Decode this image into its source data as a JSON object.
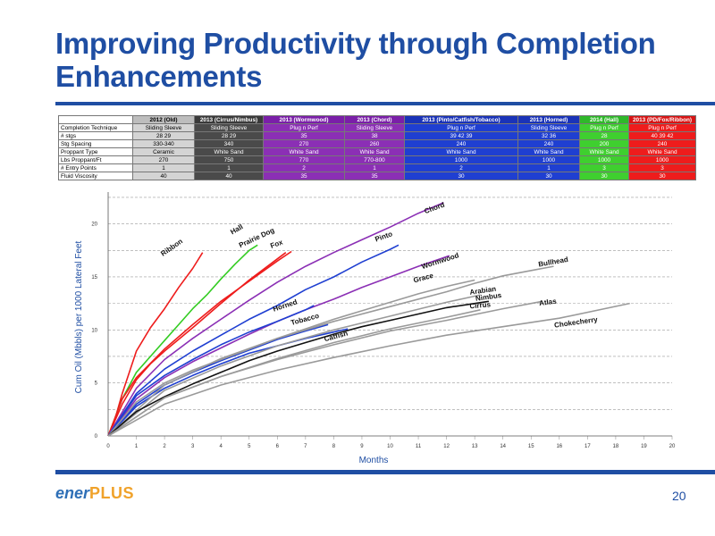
{
  "slide": {
    "title_line1": "Improving Productivity through Completion",
    "title_line2": "Enhancements",
    "page_number": "20"
  },
  "logo": {
    "part1": "ener",
    "part2": "PLUS"
  },
  "completion_table": {
    "headers": [
      "2012 (Old)",
      "2013 (Cirrus/Nimbus)",
      "2013 (Wormwood)",
      "2013 (Chord)",
      "2013 (Pinto/Catfish/Tobacco)",
      "2013 (Horned)",
      "2014 (Hall)",
      "2013 (PD/Fox/Ribbon)"
    ],
    "column_colors": [
      "#bdbdbd",
      "#4a4a4a",
      "#8b2fb5",
      "#8b2fb5",
      "#1f3fd1",
      "#1f3fd1",
      "#3fcf2f",
      "#ee1c1c"
    ],
    "header_colors": [
      "#bdbdbd",
      "#3a3a3a",
      "#7a1fa8",
      "#7a1fa8",
      "#1a33b8",
      "#1a33b8",
      "#2fb82a",
      "#d81414"
    ],
    "rows": [
      {
        "label": "Completion Technique",
        "values": [
          "Sliding Sleeve",
          "Sliding Sleeve",
          "Plug n Perf",
          "Sliding Sleeve",
          "Plug n Perf",
          "Sliding Sleeve",
          "Plug n Perf",
          "Plug n Perf"
        ]
      },
      {
        "label": "# stgs",
        "values": [
          "28 29",
          "28 29",
          "35",
          "38",
          "39   42  39",
          "32 36",
          "28",
          "40  39  42"
        ]
      },
      {
        "label": "Stg Spacing",
        "values": [
          "330-340",
          "340",
          "270",
          "260",
          "240",
          "240",
          "200",
          "240"
        ]
      },
      {
        "label": "Proppant Type",
        "values": [
          "Ceramic",
          "White Sand",
          "White Sand",
          "White Sand",
          "White Sand",
          "White Sand",
          "White Sand",
          "White Sand"
        ]
      },
      {
        "label": "Lbs Proppant/Ft",
        "values": [
          "270",
          "750",
          "770",
          "770-800",
          "1000",
          "1000",
          "1000",
          "1000"
        ]
      },
      {
        "label": "# Entry Points",
        "values": [
          "1",
          "1",
          "2",
          "1",
          "2",
          "1",
          "3",
          "3"
        ]
      },
      {
        "label": "Fluid Viscosity",
        "values": [
          "40",
          "40",
          "35",
          "35",
          "30",
          "30",
          "30",
          "30"
        ]
      }
    ]
  },
  "chart_data": {
    "type": "line",
    "title": "",
    "xlabel": "Months",
    "ylabel": "Cum Oil (Mbbls) per 1000 Lateral Feet",
    "xlim": [
      0,
      20
    ],
    "ylim": [
      0,
      23
    ],
    "x_ticks": [
      0,
      1,
      2,
      3,
      4,
      5,
      6,
      7,
      8,
      9,
      10,
      11,
      12,
      13,
      14,
      15,
      16,
      17,
      18,
      19,
      20
    ],
    "y_ticks": [
      0,
      5,
      10,
      15,
      20
    ],
    "grid": "horizontal dashed",
    "series": [
      {
        "name": "Ribbon",
        "color": "#ee1c1c",
        "label_at": [
          2.3,
          17.6
        ],
        "label_rotate": -35,
        "x": [
          0,
          0.2,
          0.5,
          1,
          1.5,
          2,
          2.5,
          3,
          3.35
        ],
        "y": [
          0,
          1.2,
          4,
          8,
          10.2,
          12,
          14,
          15.8,
          17.3
        ]
      },
      {
        "name": "Hall",
        "color": "#33cc22",
        "label_at": [
          4.6,
          19.3
        ],
        "label_rotate": -30,
        "x": [
          0,
          0.5,
          1,
          1.5,
          2,
          2.5,
          3,
          3.5,
          4,
          4.5,
          5,
          5.3
        ],
        "y": [
          0,
          3.5,
          6,
          7.5,
          9,
          10.5,
          12,
          13.3,
          14.8,
          16.2,
          17.5,
          18
        ]
      },
      {
        "name": "Prairie Dog",
        "color": "#ee1c1c",
        "label_at": [
          5.3,
          18.5
        ],
        "label_rotate": -25,
        "x": [
          0,
          0.5,
          1,
          1.5,
          2,
          3,
          4,
          5,
          6,
          6.3
        ],
        "y": [
          0,
          3,
          5.3,
          6.8,
          8,
          10.2,
          12.5,
          14.7,
          16.7,
          17.3
        ]
      },
      {
        "name": "Fox",
        "color": "#ee1c1c",
        "label_at": [
          6.0,
          17.9
        ],
        "label_rotate": -20,
        "x": [
          0,
          0.5,
          1,
          2,
          3,
          4,
          5,
          6,
          6.5
        ],
        "y": [
          0,
          3.5,
          5.5,
          8.2,
          10.5,
          12.7,
          14.6,
          16.5,
          17.4
        ]
      },
      {
        "name": "Chord",
        "color": "#8b2fb5",
        "label_at": [
          11.6,
          21.3
        ],
        "label_rotate": -20,
        "x": [
          0,
          1,
          2,
          3,
          4,
          5,
          6,
          7,
          8,
          9,
          10,
          11,
          11.9
        ],
        "y": [
          0,
          4.5,
          7.2,
          9.2,
          11,
          12.8,
          14.5,
          16,
          17.3,
          18.5,
          19.7,
          21,
          22
        ]
      },
      {
        "name": "Pinto",
        "color": "#1f3fd1",
        "label_at": [
          9.8,
          18.6
        ],
        "label_rotate": -20,
        "x": [
          0,
          1,
          2,
          3,
          4,
          5,
          6,
          7,
          8,
          9,
          10,
          10.3
        ],
        "y": [
          0,
          4,
          6.3,
          8,
          9.5,
          11,
          12.3,
          13.8,
          15,
          16.4,
          17.6,
          18
        ]
      },
      {
        "name": "Wormwood",
        "color": "#8b2fb5",
        "label_at": [
          11.8,
          16.3
        ],
        "label_rotate": -18,
        "x": [
          0,
          1,
          2,
          3,
          4,
          5,
          6,
          7,
          8,
          9,
          10,
          11,
          12.1
        ],
        "y": [
          0,
          3.5,
          5.5,
          7,
          8.3,
          9.6,
          10.8,
          11.9,
          12.9,
          14,
          15,
          16,
          17
        ]
      },
      {
        "name": "Horned",
        "color": "#1f3fd1",
        "label_at": [
          6.3,
          12.1
        ],
        "label_rotate": -18,
        "x": [
          0,
          1,
          2,
          3,
          4,
          5,
          6,
          7,
          7.3
        ],
        "y": [
          0,
          3.8,
          5.7,
          7.2,
          8.6,
          9.8,
          10.8,
          11.9,
          12.3
        ]
      },
      {
        "name": "Tobacco",
        "color": "#1f3fd1",
        "label_at": [
          7.0,
          10.8
        ],
        "label_rotate": -15,
        "x": [
          0,
          1,
          2,
          3,
          4,
          5,
          6,
          7,
          7.8
        ],
        "y": [
          0,
          3,
          4.8,
          6,
          7.1,
          8.1,
          9.1,
          9.9,
          10.5
        ]
      },
      {
        "name": "Catfish",
        "color": "#1f3fd1",
        "label_at": [
          8.1,
          9.2
        ],
        "label_rotate": -15,
        "x": [
          0,
          1,
          2,
          3,
          4,
          5,
          6,
          7,
          8,
          8.5
        ],
        "y": [
          0,
          2.8,
          4.5,
          5.7,
          6.8,
          7.8,
          8.5,
          9.2,
          9.8,
          10.1
        ]
      },
      {
        "name": "Grace",
        "color": "#9a9a9a",
        "label_at": [
          11.2,
          14.7
        ],
        "label_rotate": -15,
        "x": [
          0,
          1,
          2,
          3,
          4,
          5,
          6,
          7,
          8,
          9,
          10,
          11,
          12,
          13
        ],
        "y": [
          0,
          3.2,
          5,
          6.2,
          7.2,
          8.2,
          9.2,
          10.1,
          11,
          11.8,
          12.6,
          13.4,
          14.1,
          14.7
        ]
      },
      {
        "name": "Bullhead",
        "color": "#9a9a9a",
        "label_at": [
          15.8,
          16.2
        ],
        "label_rotate": -10,
        "x": [
          0,
          2,
          4,
          6,
          8,
          10,
          12,
          13,
          14,
          15,
          15.8
        ],
        "y": [
          0,
          4.8,
          7.3,
          9.2,
          10.8,
          12.2,
          13.6,
          14.4,
          15.1,
          15.6,
          16
        ]
      },
      {
        "name": "Arabian",
        "color": "#9a9a9a",
        "label_at": [
          13.3,
          13.5
        ],
        "label_rotate": -8,
        "x": [
          0,
          2,
          4,
          6,
          8,
          10,
          12,
          13.2
        ],
        "y": [
          0,
          4.3,
          6.6,
          8.5,
          10,
          11.3,
          12.6,
          13.3
        ]
      },
      {
        "name": "Nimbus",
        "color": "#111111",
        "label_at": [
          13.5,
          12.9
        ],
        "label_rotate": -8,
        "x": [
          0,
          1,
          2,
          3,
          4,
          5,
          6,
          7,
          8,
          9,
          10,
          11,
          12,
          13.5
        ],
        "y": [
          0,
          2.3,
          3.7,
          4.9,
          6,
          7.1,
          8,
          8.8,
          9.6,
          10.3,
          10.9,
          11.5,
          12.1,
          12.7
        ]
      },
      {
        "name": "Cirrus",
        "color": "#9a9a9a",
        "label_at": [
          13.2,
          12.1
        ],
        "label_rotate": -5,
        "x": [
          0,
          2,
          4,
          6,
          8,
          10,
          12,
          13.2
        ],
        "y": [
          0,
          3.6,
          5.6,
          7.3,
          8.8,
          10.1,
          11.2,
          11.9
        ]
      },
      {
        "name": "Atlas",
        "color": "#9a9a9a",
        "label_at": [
          15.6,
          12.4
        ],
        "label_rotate": -8,
        "x": [
          0,
          2,
          4,
          6,
          8,
          10,
          12,
          14,
          15.4
        ],
        "y": [
          0,
          3.6,
          5.6,
          7.2,
          8.6,
          9.9,
          10.9,
          12,
          12.7
        ]
      },
      {
        "name": "Chokecherry",
        "color": "#9a9a9a",
        "label_at": [
          16.6,
          10.5
        ],
        "label_rotate": -8,
        "x": [
          0,
          2,
          4,
          6,
          8,
          10,
          12,
          14,
          16,
          18.5
        ],
        "y": [
          0,
          3,
          4.8,
          6.2,
          7.4,
          8.5,
          9.5,
          10.3,
          11.1,
          12.5
        ]
      }
    ]
  }
}
